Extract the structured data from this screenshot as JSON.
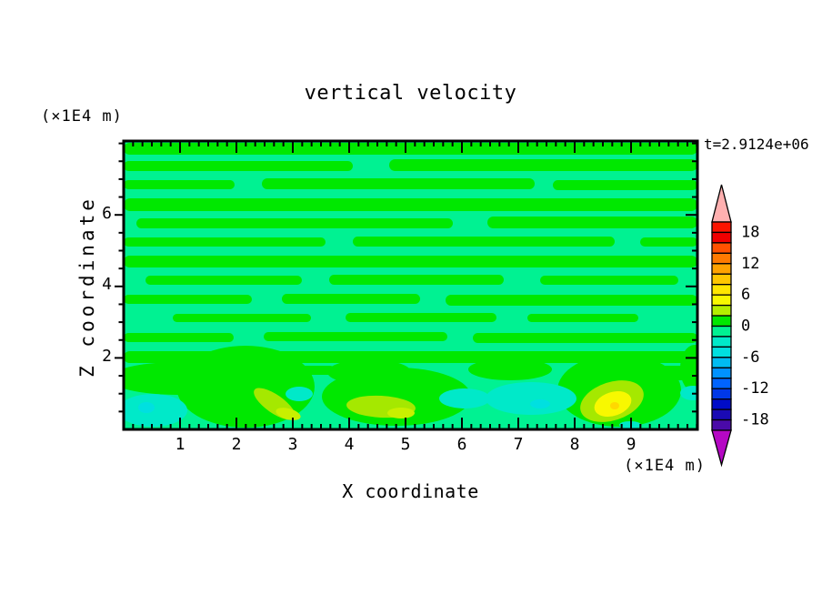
{
  "title": "vertical velocity",
  "time_label": "t=2.9124e+06",
  "axes": {
    "x": {
      "label": "X coordinate",
      "units": "(×1E4 m)",
      "ticks": [
        "1",
        "2",
        "3",
        "4",
        "5",
        "6",
        "7",
        "8",
        "9"
      ]
    },
    "y": {
      "label": "Z coordinate",
      "units": "(×1E4 m)",
      "ticks": [
        "6",
        "4",
        "2"
      ]
    }
  },
  "colorbar": {
    "labels": [
      "18",
      "12",
      "6",
      "0",
      "-6",
      "-12",
      "-18"
    ],
    "colors": [
      "#FC1400",
      "#F00000",
      "#FF5200",
      "#FF7A00",
      "#FFA200",
      "#FFC600",
      "#FFE600",
      "#F8F800",
      "#B4EE00",
      "#00E800",
      "#00F292",
      "#00E9C9",
      "#00E0E0",
      "#00BCF2",
      "#0092FF",
      "#0064FF",
      "#0038E8",
      "#000CC8",
      "#1A0AB4",
      "#4A0AA8"
    ],
    "arrow_top": "#FFB0B0",
    "arrow_bottom": "#B508C4"
  },
  "chart_data": {
    "type": "heatmap",
    "subtype": "filled_contour",
    "title": "vertical velocity",
    "xlabel": "X coordinate",
    "ylabel": "Z coordinate",
    "x_units_scale": "×1E4 m",
    "y_units_scale": "×1E4 m",
    "time_annotation": "t=2.9124e+06",
    "x_range": [
      0,
      10.18
    ],
    "z_range": [
      0,
      8.07
    ],
    "x_major_ticks": [
      1,
      2,
      3,
      4,
      5,
      6,
      7,
      8,
      9
    ],
    "y_major_ticks": [
      2,
      4,
      6
    ],
    "contour_interval": 2,
    "colorbar_label_values": [
      18,
      12,
      6,
      0,
      -6,
      -12,
      -18
    ],
    "colorbar_range": [
      -20,
      20
    ],
    "field_summary": "Vertical velocity near zero (alternating +/-2 bands) through most of the domain; stronger cells in lowest 1.5 units: updrafts to ~+8 near x=8.6 and x=2.5-5, downdrafts to ~-6 near x=0.5, 6, 7.3",
    "render": {
      "bg": "#00F292",
      "streak_color": "#00E800",
      "streak_level": "0..2",
      "streaks": [
        [
          0,
          2,
          631,
          13
        ],
        [
          0,
          22,
          252,
          11
        ],
        [
          292,
          20,
          339,
          13
        ],
        [
          0,
          43,
          122,
          10
        ],
        [
          152,
          41,
          300,
          12
        ],
        [
          472,
          43,
          159,
          11
        ],
        [
          0,
          63,
          631,
          14
        ],
        [
          14,
          85,
          348,
          11
        ],
        [
          400,
          83,
          231,
          13
        ],
        [
          0,
          106,
          222,
          10
        ],
        [
          252,
          105,
          288,
          11
        ],
        [
          568,
          106,
          63,
          10
        ],
        [
          0,
          126,
          631,
          13
        ],
        [
          24,
          148,
          172,
          10
        ],
        [
          226,
          147,
          192,
          11
        ],
        [
          458,
          148,
          152,
          10
        ],
        [
          0,
          169,
          141,
          10
        ],
        [
          174,
          168,
          152,
          11
        ],
        [
          354,
          169,
          277,
          12
        ],
        [
          54,
          190,
          152,
          9
        ],
        [
          244,
          189,
          166,
          10
        ],
        [
          444,
          190,
          122,
          9
        ],
        [
          0,
          211,
          121,
          10
        ],
        [
          154,
          210,
          202,
          10
        ],
        [
          384,
          211,
          247,
          11
        ],
        [
          0,
          231,
          631,
          13
        ],
        [
          0,
          249,
          116,
          12
        ],
        [
          150,
          247,
          82,
          10
        ],
        [
          498,
          247,
          133,
          16
        ]
      ],
      "blobs": [
        {
          "cx": 60,
          "cy": 261,
          "rx": 76,
          "ry": 18,
          "rot": 0,
          "c": "#00E800",
          "lv": "0..2"
        },
        {
          "cx": 134,
          "cy": 270,
          "rx": 76,
          "ry": 45,
          "rot": 0,
          "c": "#00E800",
          "lv": "0..2"
        },
        {
          "cx": 270,
          "cy": 254,
          "rx": 46,
          "ry": 14,
          "rot": 0,
          "c": "#00E800",
          "lv": "0..2"
        },
        {
          "cx": 300,
          "cy": 281,
          "rx": 82,
          "ry": 32,
          "rot": 0,
          "c": "#00E800",
          "lv": "0..2"
        },
        {
          "cx": 425,
          "cy": 251,
          "rx": 46,
          "ry": 12,
          "rot": 0,
          "c": "#00E800",
          "lv": "0..2"
        },
        {
          "cx": 545,
          "cy": 274,
          "rx": 68,
          "ry": 40,
          "rot": 0,
          "c": "#00E800",
          "lv": "0..2"
        },
        {
          "cx": 628,
          "cy": 250,
          "rx": 16,
          "ry": 26,
          "rot": 0,
          "c": "#00E800",
          "lv": "0..2"
        },
        {
          "cx": 166,
          "cy": 289,
          "rx": 27,
          "ry": 10,
          "rot": 35,
          "c": "#A5E800",
          "lv": "2..4"
        },
        {
          "cx": 283,
          "cy": 292,
          "rx": 38,
          "ry": 12,
          "rot": 3,
          "c": "#A5E800",
          "lv": "2..4"
        },
        {
          "cx": 537,
          "cy": 286,
          "rx": 36,
          "ry": 21,
          "rot": -18,
          "c": "#A5E800",
          "lv": "2..4"
        },
        {
          "cx": 181,
          "cy": 300,
          "rx": 14,
          "ry": 6,
          "rot": 15,
          "c": "#C8F000",
          "lv": "2..4"
        },
        {
          "cx": 305,
          "cy": 299,
          "rx": 15,
          "ry": 6,
          "rot": 0,
          "c": "#C8F000",
          "lv": "2..4"
        },
        {
          "cx": 538,
          "cy": 289,
          "rx": 21,
          "ry": 13,
          "rot": -18,
          "c": "#F8F800",
          "lv": "4..6"
        },
        {
          "cx": 540,
          "cy": 291,
          "rx": 5,
          "ry": 4,
          "rot": 0,
          "c": "#FFD800",
          "lv": "6..8"
        },
        {
          "cx": 32,
          "cy": 296,
          "rx": 38,
          "ry": 18,
          "rot": 0,
          "c": "#00E9C9",
          "lv": "-4..-2"
        },
        {
          "cx": 193,
          "cy": 278,
          "rx": 15,
          "ry": 8,
          "rot": 0,
          "c": "#00E9C9",
          "lv": "-4..-2"
        },
        {
          "cx": 375,
          "cy": 283,
          "rx": 28,
          "ry": 11,
          "rot": 0,
          "c": "#00E9C9",
          "lv": "-4..-2"
        },
        {
          "cx": 448,
          "cy": 283,
          "rx": 50,
          "ry": 18,
          "rot": 0,
          "c": "#00E9C9",
          "lv": "-4..-2"
        },
        {
          "cx": 626,
          "cy": 277,
          "rx": 14,
          "ry": 8,
          "rot": 0,
          "c": "#00E9C9",
          "lv": "-4..-2"
        },
        {
          "cx": 557,
          "cy": 312,
          "rx": 12,
          "ry": 4,
          "rot": 0,
          "c": "#00E9C9",
          "lv": "-4..-2"
        },
        {
          "cx": 25,
          "cy": 293,
          "rx": 9,
          "ry": 6,
          "rot": 0,
          "c": "#00E0E0",
          "lv": "-6..-4"
        },
        {
          "cx": 458,
          "cy": 289,
          "rx": 11,
          "ry": 5,
          "rot": 0,
          "c": "#00E0E0",
          "lv": "-6..-4"
        }
      ]
    }
  }
}
